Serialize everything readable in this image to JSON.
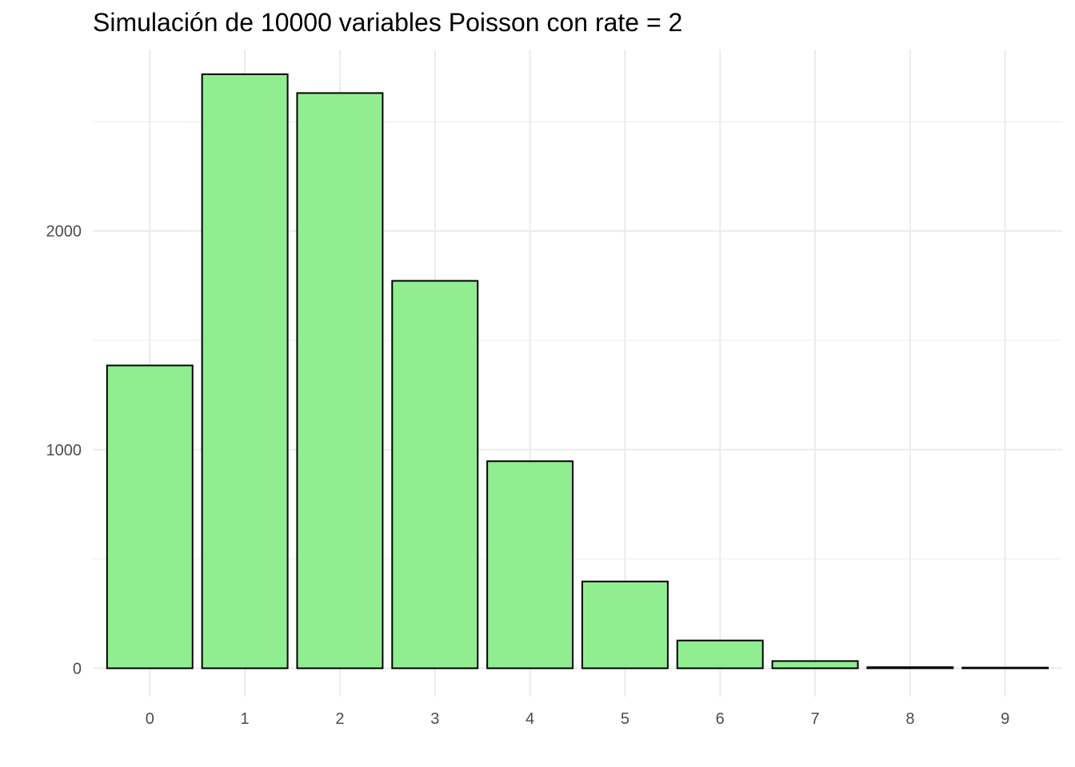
{
  "chart_data": {
    "type": "bar",
    "title": "Simulación de 10000 variables Poisson con rate = 2",
    "xlabel": "",
    "ylabel": "",
    "categories": [
      "0",
      "1",
      "2",
      "3",
      "4",
      "5",
      "6",
      "7",
      "8",
      "9"
    ],
    "values": [
      1385,
      2717,
      2631,
      1772,
      947,
      397,
      127,
      33,
      5,
      3
    ],
    "y_ticks": [
      "0",
      "1000",
      "2000"
    ],
    "ylim": [
      -130,
      2830
    ],
    "grid": true,
    "legend": "none",
    "colors": {
      "bar_fill": "#90EE90",
      "bar_stroke": "#000000",
      "grid": "#ebebeb"
    }
  }
}
